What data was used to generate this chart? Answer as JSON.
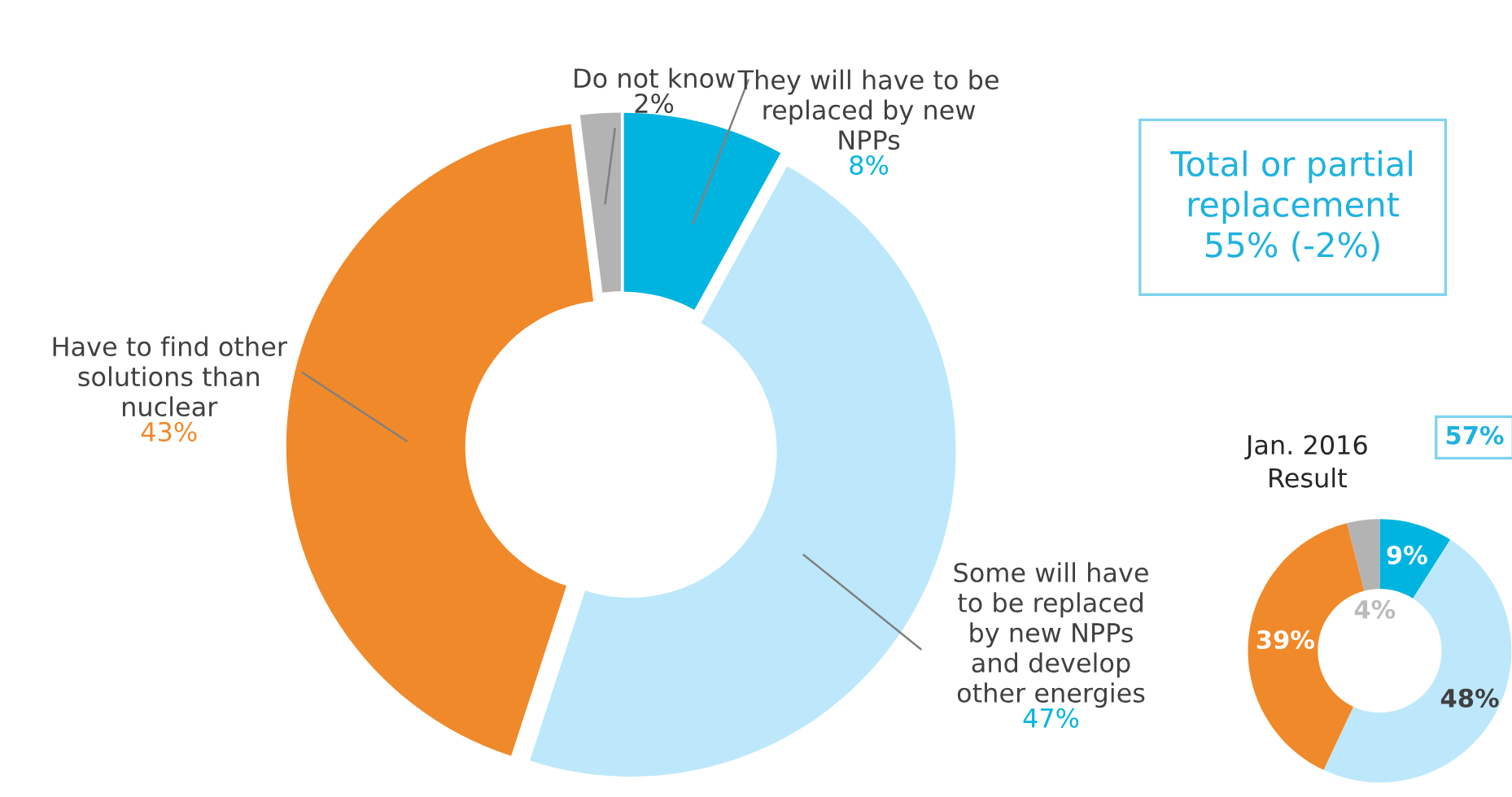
{
  "chart_data": [
    {
      "type": "donut",
      "categories": [
        "They will have to be\nreplaced by new\nNPPs",
        "Some will have\nto be replaced\nby new NPPs\nand develop\nother energies",
        "Have to find other\nsolutions than\nnuclear",
        "Do not know"
      ],
      "values": [
        8,
        47,
        43,
        2
      ],
      "colors": [
        "#00b4e0",
        "#bde8fb",
        "#f0892a",
        "#b3b3b3"
      ],
      "value_labels": [
        "8%",
        "47%",
        "43%",
        "2%"
      ],
      "annotations": [
        "Total or partial\nreplacement\n55% (-2%)"
      ],
      "legend": false
    },
    {
      "type": "donut",
      "title": "Jan. 2016\nResult",
      "categories": [
        null,
        null,
        null,
        null
      ],
      "values": [
        9,
        48,
        39,
        4
      ],
      "colors": [
        "#00b4e0",
        "#bde8fb",
        "#f0892a",
        "#b3b3b3"
      ],
      "value_labels": [
        "9%",
        "48%",
        "39%",
        "4%"
      ],
      "annotations": [
        "57%"
      ],
      "legend": false
    }
  ]
}
